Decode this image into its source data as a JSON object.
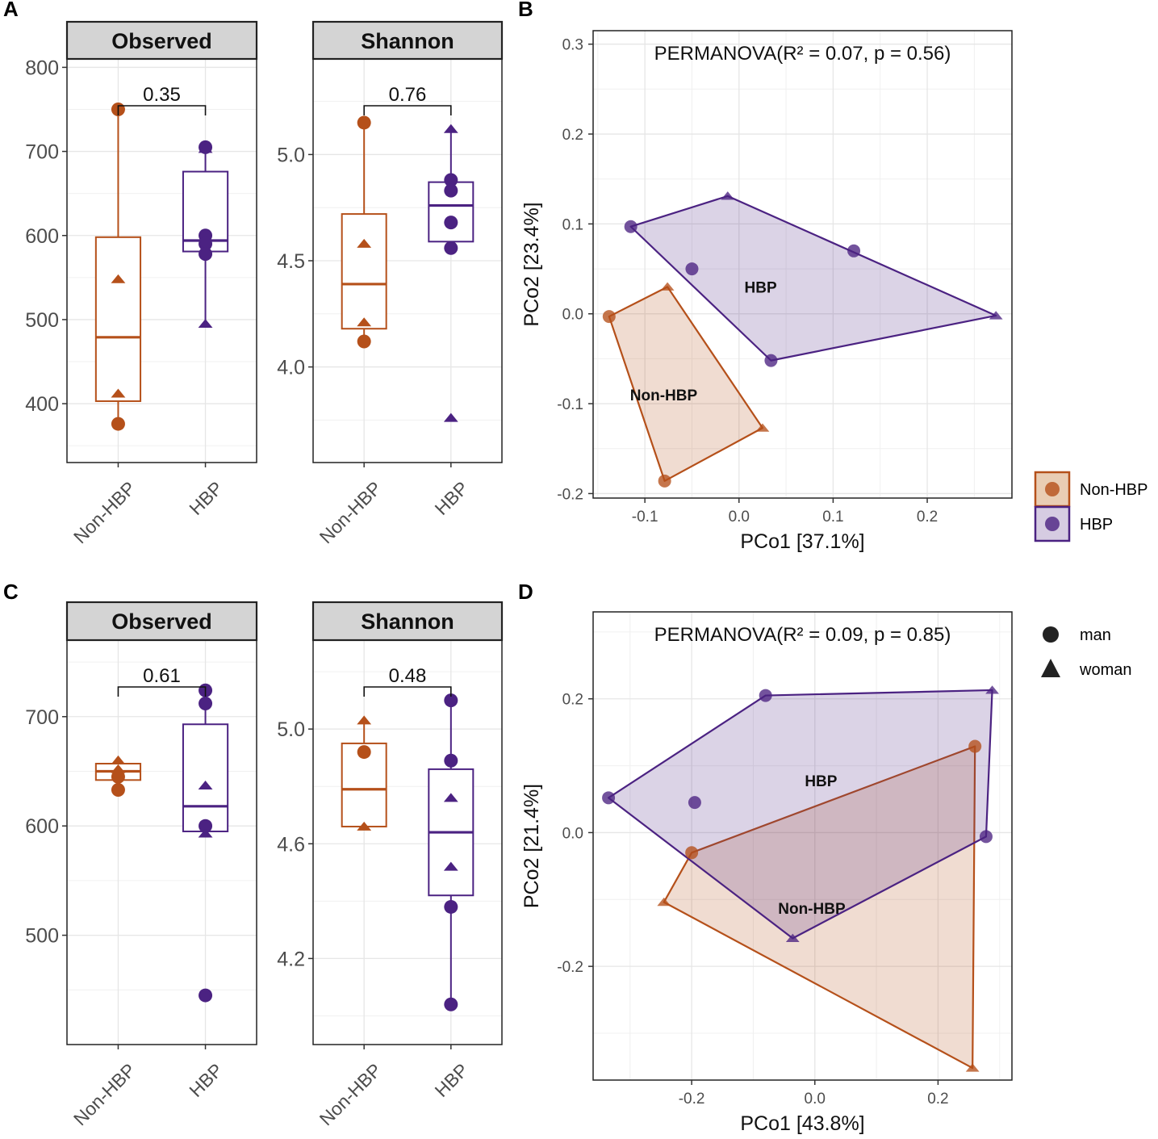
{
  "colors": {
    "non_hbp": "#B5501A",
    "hbp": "#4B2282",
    "non_hbp_fill": "#E9CDB4",
    "hbp_fill": "#D6CCE2",
    "grid": "#E6E6E6",
    "strip_bg": "#D4D4D4"
  },
  "panel_labels": [
    "A",
    "B",
    "C",
    "D"
  ],
  "legend": {
    "group_title": "",
    "groups": [
      {
        "label": "Non-HBP"
      },
      {
        "label": "HBP"
      }
    ],
    "shapes": [
      {
        "label": "man",
        "shape": "circle"
      },
      {
        "label": "woman",
        "shape": "triangle"
      }
    ]
  },
  "chart_data": [
    {
      "id": "A-observed",
      "type": "box",
      "strip": "Observed",
      "categories": [
        "Non-HBP",
        "HBP"
      ],
      "ylim": [
        330,
        810
      ],
      "yticks": [
        400,
        500,
        600,
        700,
        800
      ],
      "yticklabels": [
        "400",
        "500",
        "600",
        "700",
        "800"
      ],
      "pvalue": "0.35",
      "boxes": [
        {
          "group": "Non-HBP",
          "q1": 403,
          "median": 479,
          "q3": 598,
          "whisker_low": 376,
          "whisker_high": 750
        },
        {
          "group": "HBP",
          "q1": 581,
          "median": 594,
          "q3": 676,
          "whisker_low": 495,
          "whisker_high": 705
        }
      ],
      "points": [
        {
          "group": "Non-HBP",
          "value": 750,
          "shape": "circle"
        },
        {
          "group": "Non-HBP",
          "value": 548,
          "shape": "triangle"
        },
        {
          "group": "Non-HBP",
          "value": 412,
          "shape": "triangle"
        },
        {
          "group": "Non-HBP",
          "value": 376,
          "shape": "circle"
        },
        {
          "group": "HBP",
          "value": 705,
          "shape": "circle"
        },
        {
          "group": "HBP",
          "value": 703,
          "shape": "triangle"
        },
        {
          "group": "HBP",
          "value": 600,
          "shape": "circle"
        },
        {
          "group": "HBP",
          "value": 590,
          "shape": "circle"
        },
        {
          "group": "HBP",
          "value": 578,
          "shape": "circle"
        },
        {
          "group": "HBP",
          "value": 495,
          "shape": "triangle"
        }
      ]
    },
    {
      "id": "A-shannon",
      "type": "box",
      "strip": "Shannon",
      "categories": [
        "Non-HBP",
        "HBP"
      ],
      "ylim": [
        3.55,
        5.45
      ],
      "yticks": [
        4.0,
        4.5,
        5.0
      ],
      "yticklabels": [
        "4.0",
        "4.5",
        "5.0"
      ],
      "pvalue": "0.76",
      "boxes": [
        {
          "group": "Non-HBP",
          "q1": 4.18,
          "median": 4.39,
          "q3": 4.72,
          "whisker_low": 4.12,
          "whisker_high": 5.15
        },
        {
          "group": "HBP",
          "q1": 4.59,
          "median": 4.76,
          "q3": 4.87,
          "whisker_low": 4.56,
          "whisker_high": 5.12
        }
      ],
      "points": [
        {
          "group": "Non-HBP",
          "value": 5.15,
          "shape": "circle"
        },
        {
          "group": "Non-HBP",
          "value": 4.58,
          "shape": "triangle"
        },
        {
          "group": "Non-HBP",
          "value": 4.21,
          "shape": "triangle"
        },
        {
          "group": "Non-HBP",
          "value": 4.12,
          "shape": "circle"
        },
        {
          "group": "HBP",
          "value": 5.12,
          "shape": "triangle"
        },
        {
          "group": "HBP",
          "value": 4.88,
          "shape": "circle"
        },
        {
          "group": "HBP",
          "value": 4.83,
          "shape": "circle"
        },
        {
          "group": "HBP",
          "value": 4.68,
          "shape": "circle"
        },
        {
          "group": "HBP",
          "value": 4.56,
          "shape": "circle"
        },
        {
          "group": "HBP",
          "value": 3.76,
          "shape": "triangle"
        }
      ]
    },
    {
      "id": "C-observed",
      "type": "box",
      "strip": "Observed",
      "categories": [
        "Non-HBP",
        "HBP"
      ],
      "ylim": [
        400,
        770
      ],
      "yticks": [
        500,
        600,
        700
      ],
      "yticklabels": [
        "500",
        "600",
        "700"
      ],
      "pvalue": "0.61",
      "boxes": [
        {
          "group": "Non-HBP",
          "q1": 642,
          "median": 650,
          "q3": 657,
          "whisker_low": 633,
          "whisker_high": 660
        },
        {
          "group": "HBP",
          "q1": 595,
          "median": 618,
          "q3": 693,
          "whisker_low": 592,
          "whisker_high": 724
        }
      ],
      "points": [
        {
          "group": "Non-HBP",
          "value": 660,
          "shape": "triangle"
        },
        {
          "group": "Non-HBP",
          "value": 652,
          "shape": "triangle"
        },
        {
          "group": "Non-HBP",
          "value": 645,
          "shape": "circle"
        },
        {
          "group": "Non-HBP",
          "value": 633,
          "shape": "circle"
        },
        {
          "group": "HBP",
          "value": 724,
          "shape": "circle"
        },
        {
          "group": "HBP",
          "value": 712,
          "shape": "circle"
        },
        {
          "group": "HBP",
          "value": 637,
          "shape": "triangle"
        },
        {
          "group": "HBP",
          "value": 600,
          "shape": "circle"
        },
        {
          "group": "HBP",
          "value": 593,
          "shape": "triangle"
        },
        {
          "group": "HBP",
          "value": 445,
          "shape": "circle"
        }
      ]
    },
    {
      "id": "C-shannon",
      "type": "box",
      "strip": "Shannon",
      "categories": [
        "Non-HBP",
        "HBP"
      ],
      "ylim": [
        3.9,
        5.31
      ],
      "yticks": [
        4.2,
        4.6,
        5.0
      ],
      "yticklabels": [
        "4.2",
        "4.6",
        "5.0"
      ],
      "pvalue": "0.48",
      "boxes": [
        {
          "group": "Non-HBP",
          "q1": 4.66,
          "median": 4.79,
          "q3": 4.95,
          "whisker_low": 4.66,
          "whisker_high": 5.03
        },
        {
          "group": "HBP",
          "q1": 4.42,
          "median": 4.64,
          "q3": 4.86,
          "whisker_low": 4.04,
          "whisker_high": 5.1
        }
      ],
      "points": [
        {
          "group": "Non-HBP",
          "value": 5.03,
          "shape": "triangle"
        },
        {
          "group": "Non-HBP",
          "value": 4.92,
          "shape": "circle"
        },
        {
          "group": "Non-HBP",
          "value": 4.66,
          "shape": "triangle"
        },
        {
          "group": "HBP",
          "value": 5.1,
          "shape": "circle"
        },
        {
          "group": "HBP",
          "value": 4.89,
          "shape": "circle"
        },
        {
          "group": "HBP",
          "value": 4.76,
          "shape": "triangle"
        },
        {
          "group": "HBP",
          "value": 4.52,
          "shape": "triangle"
        },
        {
          "group": "HBP",
          "value": 4.38,
          "shape": "circle"
        },
        {
          "group": "HBP",
          "value": 4.04,
          "shape": "circle"
        }
      ]
    },
    {
      "id": "B-pcoa",
      "type": "scatter",
      "title": "PERMANOVA(R² = 0.07, p = 0.56)",
      "xlabel": "PCo1 [37.1%]",
      "ylabel": "PCo2 [23.4%]",
      "xlim": [
        -0.155,
        0.29
      ],
      "ylim": [
        -0.205,
        0.315
      ],
      "xticks": [
        -0.1,
        0.0,
        0.1,
        0.2
      ],
      "xticklabels": [
        "-0.1",
        "0.0",
        "0.1",
        "0.2"
      ],
      "yticks": [
        -0.2,
        -0.1,
        0.0,
        0.1,
        0.2,
        0.3
      ],
      "yticklabels": [
        "-0.2",
        "-0.1",
        "0.0",
        "0.1",
        "0.2",
        "0.3"
      ],
      "groups": [
        {
          "name": "Non-HBP",
          "label_pos": [
            -0.08,
            -0.09
          ],
          "hull": [
            [
              -0.138,
              -0.003
            ],
            [
              -0.076,
              0.03
            ],
            [
              0.025,
              -0.127
            ],
            [
              -0.079,
              -0.186
            ]
          ],
          "points": [
            {
              "x": -0.138,
              "y": -0.003,
              "shape": "circle"
            },
            {
              "x": -0.076,
              "y": 0.03,
              "shape": "triangle"
            },
            {
              "x": 0.025,
              "y": -0.127,
              "shape": "triangle"
            },
            {
              "x": -0.079,
              "y": -0.186,
              "shape": "circle"
            }
          ]
        },
        {
          "name": "HBP",
          "label_pos": [
            0.023,
            0.03
          ],
          "hull": [
            [
              -0.115,
              0.097
            ],
            [
              -0.012,
              0.131
            ],
            [
              0.273,
              -0.002
            ],
            [
              0.034,
              -0.052
            ]
          ],
          "points": [
            {
              "x": -0.115,
              "y": 0.097,
              "shape": "circle"
            },
            {
              "x": -0.012,
              "y": 0.131,
              "shape": "triangle"
            },
            {
              "x": 0.122,
              "y": 0.07,
              "shape": "circle"
            },
            {
              "x": 0.273,
              "y": -0.002,
              "shape": "triangle"
            },
            {
              "x": 0.034,
              "y": -0.052,
              "shape": "circle"
            },
            {
              "x": -0.05,
              "y": 0.05,
              "shape": "circle"
            }
          ]
        }
      ]
    },
    {
      "id": "D-pcoa",
      "type": "scatter",
      "title": "PERMANOVA(R² = 0.09, p = 0.85)",
      "xlabel": "PCo1 [43.8%]",
      "ylabel": "PCo2 [21.4%]",
      "xlim": [
        -0.36,
        0.32
      ],
      "ylim": [
        -0.37,
        0.33
      ],
      "xticks": [
        -0.2,
        0.0,
        0.2
      ],
      "xticklabels": [
        "-0.2",
        "0.0",
        "0.2"
      ],
      "yticks": [
        -0.2,
        0.0,
        0.2
      ],
      "yticklabels": [
        "-0.2",
        "0.0",
        "0.2"
      ],
      "groups": [
        {
          "name": "Non-HBP",
          "label_pos": [
            -0.005,
            -0.113
          ],
          "hull": [
            [
              -0.2,
              -0.03
            ],
            [
              0.26,
              0.129
            ],
            [
              0.256,
              -0.352
            ],
            [
              -0.245,
              -0.104
            ]
          ],
          "points": [
            {
              "x": -0.2,
              "y": -0.03,
              "shape": "circle"
            },
            {
              "x": 0.26,
              "y": 0.129,
              "shape": "circle"
            },
            {
              "x": 0.256,
              "y": -0.352,
              "shape": "triangle"
            },
            {
              "x": -0.245,
              "y": -0.104,
              "shape": "triangle"
            }
          ]
        },
        {
          "name": "HBP",
          "label_pos": [
            0.01,
            0.078
          ],
          "hull": [
            [
              -0.335,
              0.052
            ],
            [
              -0.08,
              0.205
            ],
            [
              0.288,
              0.213
            ],
            [
              0.278,
              -0.006
            ],
            [
              -0.036,
              -0.158
            ]
          ],
          "points": [
            {
              "x": -0.335,
              "y": 0.052,
              "shape": "circle"
            },
            {
              "x": -0.08,
              "y": 0.205,
              "shape": "circle"
            },
            {
              "x": 0.288,
              "y": 0.213,
              "shape": "triangle"
            },
            {
              "x": 0.278,
              "y": -0.006,
              "shape": "circle"
            },
            {
              "x": -0.036,
              "y": -0.158,
              "shape": "triangle"
            },
            {
              "x": -0.195,
              "y": 0.045,
              "shape": "circle"
            }
          ]
        }
      ]
    }
  ]
}
